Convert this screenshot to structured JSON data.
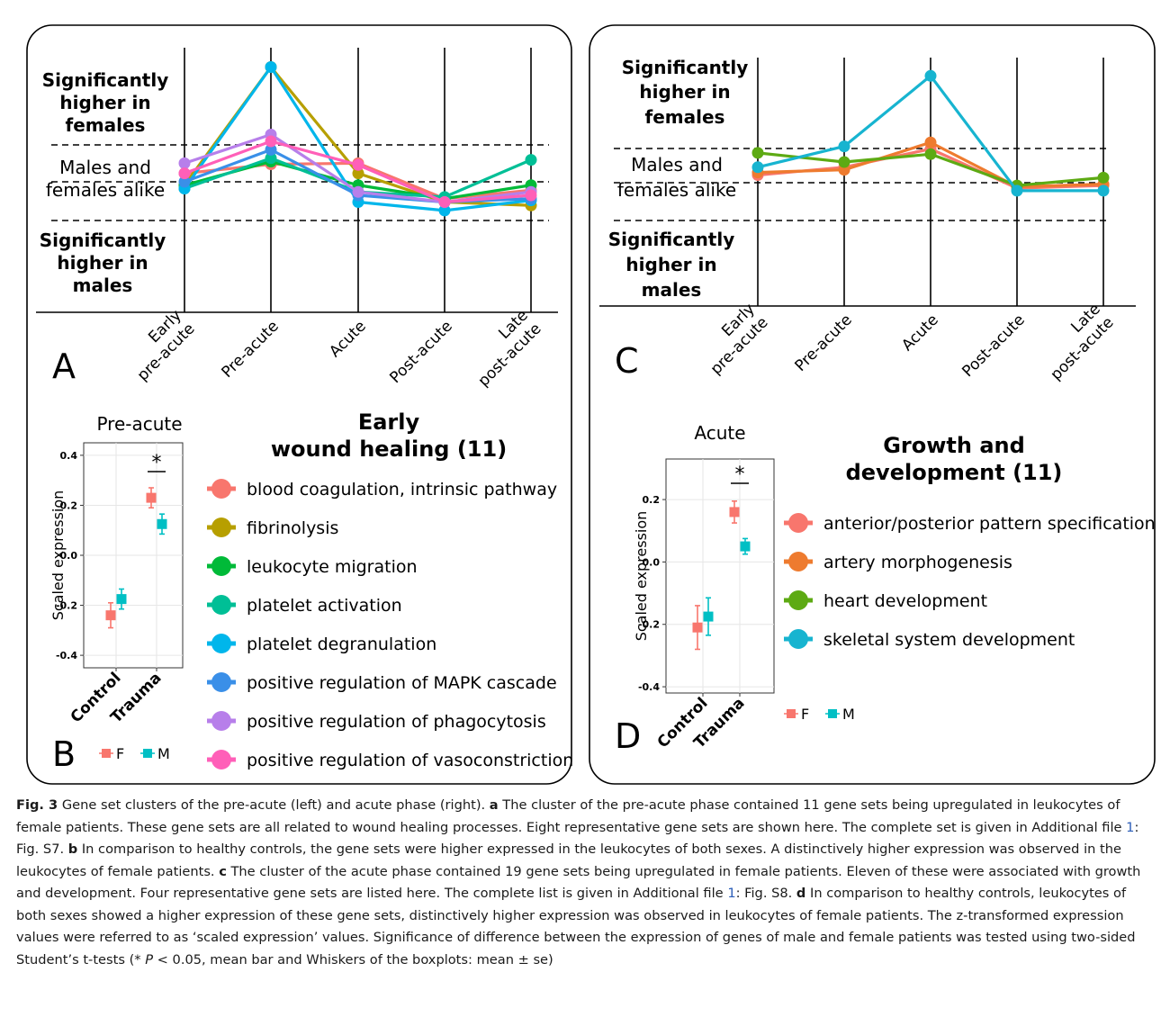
{
  "colors": {
    "blood_coagulation": "#F8766D",
    "fibrinolysis": "#B79F00",
    "leukocyte_migration": "#00BA38",
    "platelet_activation": "#00BF96",
    "platelet_degranulation": "#00B6EB",
    "mapk": "#3A8FE8",
    "phagocytosis": "#B77FEA",
    "vasoconstriction": "#FF5FB8",
    "ap_pattern": "#F8766D",
    "artery": "#EE7B2F",
    "heart": "#5DAA13",
    "skeletal": "#17B4D0",
    "F": "#F8766D",
    "M": "#00BFC4",
    "grey_lines": "#c8c8c8",
    "caption_link": "#2b5db8"
  },
  "panel_letters": {
    "A": "A",
    "B": "B",
    "C": "C",
    "D": "D"
  },
  "category_labels": {
    "higher_females": [
      "Significantly",
      "higher in",
      "females"
    ],
    "alike": [
      "Males and",
      "females alike"
    ],
    "higher_males": [
      "Significantly",
      "higher in",
      "males"
    ]
  },
  "caption": {
    "fig_label": "Fig. 3",
    "intro": " Gene set clusters of the pre-acute (left) and acute phase (right). ",
    "a_label": "a",
    "a_text_1": " The cluster of the pre-acute phase contained 11 gene sets being upregulated in leukocytes of female patients. These gene sets are all related to wound healing processes. Eight representative gene sets are shown here. The complete set is given in Additional file ",
    "a_ref": "1",
    "a_text_2": ": Fig. S7. ",
    "b_label": "b",
    "b_text": " In comparison to healthy controls, the gene sets were higher expressed in the leukocytes of both sexes. A distinctively higher expression was observed in the leukocytes of female patients. ",
    "c_label": "c",
    "c_text_1": " The cluster of the acute phase contained 19 gene sets being upregulated in female patients. Eleven of these were associated with growth and development. Four representative gene sets are listed here. The complete list is given in Additional file ",
    "c_ref": "1",
    "c_text_2": ": Fig. S8. ",
    "d_label": "d",
    "d_text": " In comparison to healthy controls, leukocytes of both sexes showed a higher expression of these gene sets, distinctively higher expression was observed in leukocytes of female patients. The z-transformed expression values were referred to as ‘scaled expression’ values. Significance of difference between the expression of genes of male and female patients was tested using two-sided Student’s t-tests (* ",
    "p_italic": "P",
    "d_text_end": " < 0.05, mean bar and Whiskers of the boxplots: mean ± se)"
  },
  "chart_data": [
    {
      "panel": "A",
      "type": "line",
      "x": [
        "Early\npre-acute",
        "Pre-acute",
        "Acute",
        "Post-acute",
        "Late\npost-acute"
      ],
      "y_categories": [
        "Significantly higher in females",
        "Males and females alike",
        "Significantly higher in males"
      ],
      "series": [
        {
          "name": "blood coagulation, intrinsic pathway",
          "color_key": "blood_coagulation",
          "values": [
            -0.15,
            0.12,
            0.15,
            -0.9,
            -0.65
          ]
        },
        {
          "name": "fibrinolysis",
          "color_key": "fibrinolysis",
          "values": [
            -0.5,
            3.0,
            -0.15,
            -1.0,
            -1.1
          ]
        },
        {
          "name": "leukocyte migration",
          "color_key": "leukocyte_migration",
          "values": [
            -0.5,
            0.2,
            -0.5,
            -0.9,
            -0.5
          ]
        },
        {
          "name": "platelet activation",
          "color_key": "platelet_activation",
          "values": [
            -0.6,
            0.3,
            -0.7,
            -0.85,
            0.25
          ]
        },
        {
          "name": "platelet degranulation",
          "color_key": "platelet_degranulation",
          "values": [
            -0.6,
            3.0,
            -1.0,
            -1.25,
            -0.95
          ]
        },
        {
          "name": "positive regulation of MAPK cascade",
          "color_key": "mapk",
          "values": [
            -0.4,
            0.55,
            -0.8,
            -1.0,
            -0.9
          ]
        },
        {
          "name": "positive regulation of phagocytosis",
          "color_key": "phagocytosis",
          "values": [
            0.15,
            1.0,
            -0.7,
            -1.0,
            -0.7
          ]
        },
        {
          "name": "positive regulation of vasoconstriction",
          "color_key": "vasoconstriction",
          "values": [
            -0.15,
            0.8,
            0.1,
            -1.0,
            -0.8
          ]
        }
      ]
    },
    {
      "panel": "B",
      "type": "scatter",
      "title": "Pre-acute",
      "ylabel": "Scaled expression",
      "categories": [
        "Control",
        "Trauma"
      ],
      "yticks": [
        "0.4",
        "0.2",
        "0.0",
        "-0.2",
        "-0.4"
      ],
      "ylim": [
        -0.45,
        0.45
      ],
      "series": [
        {
          "name": "F",
          "values": [
            -0.24,
            0.23
          ],
          "se": [
            0.05,
            0.04
          ]
        },
        {
          "name": "M",
          "values": [
            -0.175,
            0.125
          ],
          "se": [
            0.04,
            0.04
          ]
        }
      ],
      "significance": "*",
      "legend": [
        "F",
        "M"
      ],
      "legend_title": "Early\nwound healing (11)"
    },
    {
      "panel": "C",
      "type": "line",
      "x": [
        "Early\npre-acute",
        "Pre-acute",
        "Acute",
        "Post-acute",
        "Late\npost-acute"
      ],
      "y_categories": [
        "Significantly higher in females",
        "Males and females alike",
        "Significantly higher in males"
      ],
      "series": [
        {
          "name": "anterior/posterior pattern specification",
          "color_key": "ap_pattern",
          "values": [
            -0.5,
            -0.2,
            0.5,
            -1.0,
            -0.9
          ]
        },
        {
          "name": "artery morphogenesis",
          "color_key": "artery",
          "values": [
            -0.4,
            -0.3,
            0.75,
            -0.95,
            -0.85
          ]
        },
        {
          "name": "heart development",
          "color_key": "heart",
          "values": [
            0.35,
            0.0,
            0.3,
            -0.9,
            -0.6
          ]
        },
        {
          "name": "skeletal system development",
          "color_key": "skeletal",
          "values": [
            -0.2,
            0.6,
            3.3,
            -1.1,
            -1.1
          ]
        }
      ]
    },
    {
      "panel": "D",
      "type": "scatter",
      "title": "Acute",
      "ylabel": "Scaled expression",
      "categories": [
        "Control",
        "Trauma"
      ],
      "yticks": [
        "0.2",
        "0.0",
        "-0.2",
        "-0.4"
      ],
      "ylim": [
        -0.42,
        0.33
      ],
      "series": [
        {
          "name": "F",
          "values": [
            -0.21,
            0.16
          ],
          "se": [
            0.07,
            0.035
          ]
        },
        {
          "name": "M",
          "values": [
            -0.175,
            0.05
          ],
          "se": [
            0.06,
            0.025
          ]
        }
      ],
      "significance": "*",
      "legend": [
        "F",
        "M"
      ],
      "legend_title": "Growth and\ndevelopment (11)"
    }
  ]
}
